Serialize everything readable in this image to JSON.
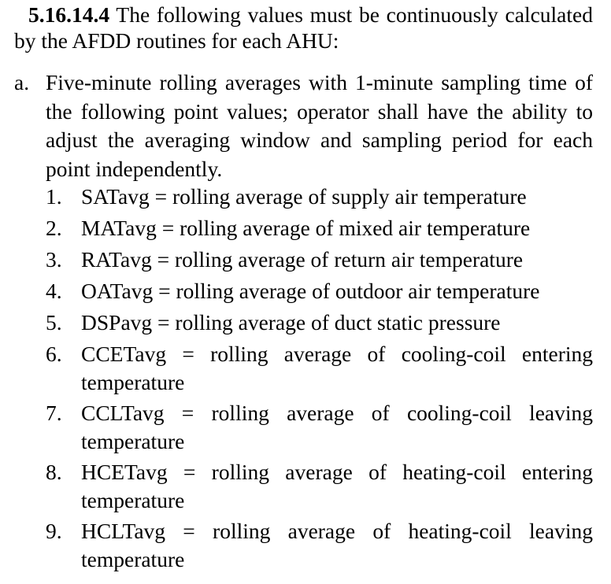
{
  "section": {
    "number": "5.16.14.4",
    "text": "The following values must be continuously calculated by the AFDD routines for each AHU:"
  },
  "item_a": {
    "marker": "a.",
    "text": "Five-minute rolling averages with 1-minute sampling time of the following point values; operator shall have the ability to adjust the averaging window and sampling period for each point independently."
  },
  "points": [
    {
      "num": "1.",
      "text": "SATavg = rolling average of supply air temperature"
    },
    {
      "num": "2.",
      "text": "MATavg = rolling average of mixed air temperature"
    },
    {
      "num": "3.",
      "text": "RATavg = rolling average of return air temperature"
    },
    {
      "num": "4.",
      "text": "OATavg = rolling average of outdoor air temperature"
    },
    {
      "num": "5.",
      "text": "DSPavg = rolling average of duct static pressure"
    },
    {
      "num": "6.",
      "text": "CCETavg = rolling average of cooling-coil entering temperature"
    },
    {
      "num": "7.",
      "text": "CCLTavg = rolling average of cooling-coil leaving temperature"
    },
    {
      "num": "8.",
      "text": "HCETavg = rolling average of heating-coil entering temperature"
    },
    {
      "num": "9.",
      "text": "HCLTavg = rolling average of heating-coil leaving temperature"
    }
  ]
}
